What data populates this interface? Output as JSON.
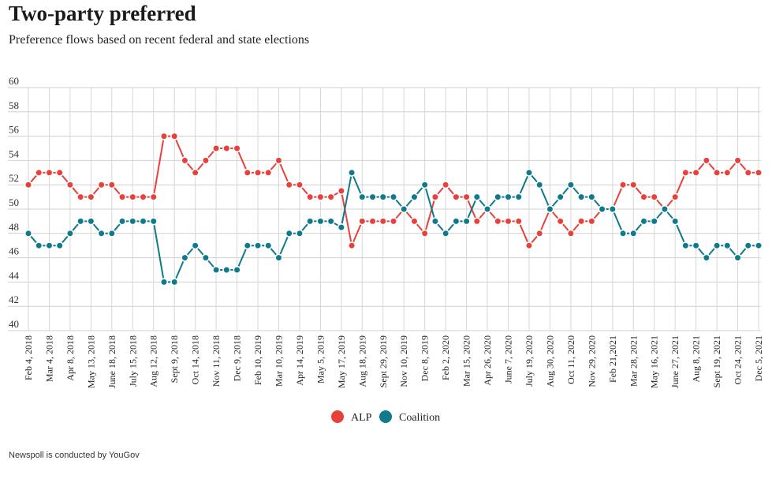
{
  "header": {
    "title": "Two-party preferred",
    "subtitle": "Preference flows based on recent federal and state elections"
  },
  "footer": {
    "note": "Newspoll is conducted by YouGov"
  },
  "chart_data": {
    "type": "line",
    "title": "Two-party preferred",
    "subtitle": "Preference flows based on recent federal and state elections",
    "xlabel": "",
    "ylabel": "",
    "ylim": [
      40,
      60
    ],
    "yticks": [
      40,
      42,
      44,
      46,
      48,
      50,
      52,
      54,
      56,
      58,
      60
    ],
    "grid": true,
    "legend_position": "bottom-center",
    "x_tick_labels": [
      {
        "index": 0,
        "label": "Feb 4, 2018"
      },
      {
        "index": 1,
        "label": "Mar 4, 2018"
      },
      {
        "index": 2,
        "label": "Apr 8, 2018"
      },
      {
        "index": 3,
        "label": "May 13, 2018"
      },
      {
        "index": 4,
        "label": "June 18, 2018"
      },
      {
        "index": 5,
        "label": "July 15, 2018"
      },
      {
        "index": 6,
        "label": "Aug 12, 2018"
      },
      {
        "index": 7,
        "label": "Sept 9, 2018"
      },
      {
        "index": 8,
        "label": "Oct 14, 2018"
      },
      {
        "index": 9,
        "label": "Nov 11, 2018"
      },
      {
        "index": 10,
        "label": "Dec 9, 2018"
      },
      {
        "index": 11,
        "label": "Feb 10, 2019"
      },
      {
        "index": 12,
        "label": "Mar 10, 2019"
      },
      {
        "index": 13,
        "label": "Apr 14, 2019"
      },
      {
        "index": 14,
        "label": "May 5, 2019"
      },
      {
        "index": 15,
        "label": "May 17, 2019"
      },
      {
        "index": 16,
        "label": "Aug 18, 2019"
      },
      {
        "index": 17,
        "label": "Sept 29, 2019"
      },
      {
        "index": 18,
        "label": "Nov 10, 2019"
      },
      {
        "index": 19,
        "label": "Dec 8, 2019"
      },
      {
        "index": 20,
        "label": "Feb 2, 2020"
      },
      {
        "index": 21,
        "label": "Mar 15, 2020"
      },
      {
        "index": 22,
        "label": "Apr 26, 2020"
      },
      {
        "index": 23,
        "label": "June 7, 2020"
      },
      {
        "index": 24,
        "label": "July 19, 2020"
      },
      {
        "index": 25,
        "label": "Aug 30, 2020"
      },
      {
        "index": 26,
        "label": "Oct 11, 2020"
      },
      {
        "index": 27,
        "label": "Nov 29, 2020"
      },
      {
        "index": 28,
        "label": "Feb 21,2021"
      },
      {
        "index": 29,
        "label": "Mar 28, 2021"
      },
      {
        "index": 30,
        "label": "May 16, 2021"
      },
      {
        "index": 31,
        "label": "June 27, 2021"
      },
      {
        "index": 32,
        "label": "Aug 8, 2021"
      },
      {
        "index": 33,
        "label": "Sept 19, 2021"
      },
      {
        "index": 34,
        "label": "Oct 24, 2021"
      },
      {
        "index": 35,
        "label": "Dec 5, 2021"
      }
    ],
    "series": [
      {
        "name": "ALP",
        "color": "#e8413c",
        "points": [
          [
            0,
            52
          ],
          [
            0.5,
            53
          ],
          [
            1,
            53
          ],
          [
            1.5,
            53
          ],
          [
            2,
            52
          ],
          [
            2.5,
            51
          ],
          [
            3,
            51
          ],
          [
            3.5,
            52
          ],
          [
            4,
            52
          ],
          [
            4.5,
            51
          ],
          [
            5,
            51
          ],
          [
            5.5,
            51
          ],
          [
            6,
            51
          ],
          [
            6.5,
            56
          ],
          [
            7,
            56
          ],
          [
            7.5,
            54
          ],
          [
            8,
            53
          ],
          [
            8.5,
            54
          ],
          [
            9,
            55
          ],
          [
            9.5,
            55
          ],
          [
            10,
            55
          ],
          [
            10.5,
            53
          ],
          [
            11,
            53
          ],
          [
            11.5,
            53
          ],
          [
            12,
            54
          ],
          [
            12.5,
            52
          ],
          [
            13,
            52
          ],
          [
            13.5,
            51
          ],
          [
            14,
            51
          ],
          [
            14.5,
            51
          ],
          [
            15,
            51.5
          ],
          [
            15.5,
            47
          ],
          [
            16,
            49
          ],
          [
            16.5,
            49
          ],
          [
            17,
            49
          ],
          [
            17.5,
            49
          ],
          [
            18,
            50
          ],
          [
            18.5,
            49
          ],
          [
            19,
            48
          ],
          [
            19.5,
            51
          ],
          [
            20,
            52
          ],
          [
            20.5,
            51
          ],
          [
            21,
            51
          ],
          [
            21.5,
            49
          ],
          [
            22,
            50
          ],
          [
            22.5,
            49
          ],
          [
            23,
            49
          ],
          [
            23.5,
            49
          ],
          [
            24,
            47
          ],
          [
            24.5,
            48
          ],
          [
            25,
            50
          ],
          [
            25.5,
            49
          ],
          [
            26,
            48
          ],
          [
            26.5,
            49
          ],
          [
            27,
            49
          ],
          [
            27.5,
            50
          ],
          [
            28,
            50
          ],
          [
            28.5,
            52
          ],
          [
            29,
            52
          ],
          [
            29.5,
            51
          ],
          [
            30,
            51
          ],
          [
            30.5,
            50
          ],
          [
            31,
            51
          ],
          [
            31.5,
            53
          ],
          [
            32,
            53
          ],
          [
            32.5,
            54
          ],
          [
            33,
            53
          ],
          [
            33.5,
            53
          ],
          [
            34,
            54
          ],
          [
            34.5,
            53
          ],
          [
            35,
            53
          ]
        ]
      },
      {
        "name": "Coalition",
        "color": "#0f7a8a",
        "points": [
          [
            0,
            48
          ],
          [
            0.5,
            47
          ],
          [
            1,
            47
          ],
          [
            1.5,
            47
          ],
          [
            2,
            48
          ],
          [
            2.5,
            49
          ],
          [
            3,
            49
          ],
          [
            3.5,
            48
          ],
          [
            4,
            48
          ],
          [
            4.5,
            49
          ],
          [
            5,
            49
          ],
          [
            5.5,
            49
          ],
          [
            6,
            49
          ],
          [
            6.5,
            44
          ],
          [
            7,
            44
          ],
          [
            7.5,
            46
          ],
          [
            8,
            47
          ],
          [
            8.5,
            46
          ],
          [
            9,
            45
          ],
          [
            9.5,
            45
          ],
          [
            10,
            45
          ],
          [
            10.5,
            47
          ],
          [
            11,
            47
          ],
          [
            11.5,
            47
          ],
          [
            12,
            46
          ],
          [
            12.5,
            48
          ],
          [
            13,
            48
          ],
          [
            13.5,
            49
          ],
          [
            14,
            49
          ],
          [
            14.5,
            49
          ],
          [
            15,
            48.5
          ],
          [
            15.5,
            53
          ],
          [
            16,
            51
          ],
          [
            16.5,
            51
          ],
          [
            17,
            51
          ],
          [
            17.5,
            51
          ],
          [
            18,
            50
          ],
          [
            18.5,
            51
          ],
          [
            19,
            52
          ],
          [
            19.5,
            49
          ],
          [
            20,
            48
          ],
          [
            20.5,
            49
          ],
          [
            21,
            49
          ],
          [
            21.5,
            51
          ],
          [
            22,
            50
          ],
          [
            22.5,
            51
          ],
          [
            23,
            51
          ],
          [
            23.5,
            51
          ],
          [
            24,
            53
          ],
          [
            24.5,
            52
          ],
          [
            25,
            50
          ],
          [
            25.5,
            51
          ],
          [
            26,
            52
          ],
          [
            26.5,
            51
          ],
          [
            27,
            51
          ],
          [
            27.5,
            50
          ],
          [
            28,
            50
          ],
          [
            28.5,
            48
          ],
          [
            29,
            48
          ],
          [
            29.5,
            49
          ],
          [
            30,
            49
          ],
          [
            30.5,
            50
          ],
          [
            31,
            49
          ],
          [
            31.5,
            47
          ],
          [
            32,
            47
          ],
          [
            32.5,
            46
          ],
          [
            33,
            47
          ],
          [
            33.5,
            47
          ],
          [
            34,
            46
          ],
          [
            34.5,
            47
          ],
          [
            35,
            47
          ]
        ]
      }
    ]
  }
}
